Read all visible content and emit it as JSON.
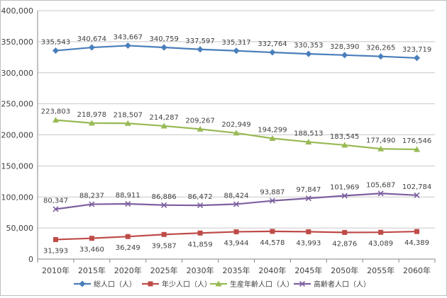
{
  "chart_data": {
    "type": "line",
    "categories": [
      "2010年",
      "2015年",
      "2020年",
      "2025年",
      "2030年",
      "2035年",
      "2040年",
      "2045年",
      "2050年",
      "2055年",
      "2060年"
    ],
    "ylim": [
      0,
      400000
    ],
    "y_ticks": [
      0,
      50000,
      100000,
      150000,
      200000,
      250000,
      300000,
      350000,
      400000
    ],
    "y_tick_labels": [
      "0",
      "50,000",
      "100,000",
      "150,000",
      "200,000",
      "250,000",
      "300,000",
      "350,000",
      "400,000"
    ],
    "grid": "horizontal",
    "legend_position": "bottom",
    "series": [
      {
        "name": "総人口（人）",
        "color": "#4a7ebb",
        "marker": "diamond",
        "label_position": "above",
        "values": [
          335543,
          340674,
          343667,
          340759,
          337597,
          335317,
          332764,
          330353,
          328390,
          326265,
          323719
        ],
        "labels": [
          "335,543",
          "340,674",
          "343,667",
          "340,759",
          "337,597",
          "335,317",
          "332,764",
          "330,353",
          "328,390",
          "326,265",
          "323,719"
        ]
      },
      {
        "name": "年少人口（人）",
        "color": "#be4b48",
        "marker": "square",
        "label_position": "below",
        "values": [
          31393,
          33460,
          36249,
          39587,
          41859,
          43944,
          44578,
          43993,
          42876,
          43089,
          44389
        ],
        "labels": [
          "31,393",
          "33,460",
          "36,249",
          "39,587",
          "41,859",
          "43,944",
          "44,578",
          "43,993",
          "42,876",
          "43,089",
          "44,389"
        ]
      },
      {
        "name": "生産年齢人口（人）",
        "color": "#98b954",
        "marker": "triangle",
        "label_position": "above",
        "values": [
          223803,
          218978,
          218507,
          214287,
          209267,
          202949,
          194299,
          188513,
          183545,
          177490,
          176546
        ],
        "labels": [
          "223,803",
          "218,978",
          "218,507",
          "214,287",
          "209,267",
          "202,949",
          "194,299",
          "188,513",
          "183,545",
          "177,490",
          "176,546"
        ]
      },
      {
        "name": "高齢者人口（人）",
        "color": "#7d60a0",
        "marker": "x",
        "label_position": "above",
        "values": [
          80347,
          88237,
          88911,
          86886,
          86472,
          88424,
          93887,
          97847,
          101969,
          105687,
          102784
        ],
        "labels": [
          "80,347",
          "88,237",
          "88,911",
          "86,886",
          "86,472",
          "88,424",
          "93,887",
          "97,847",
          "101,969",
          "105,687",
          "102,784"
        ]
      }
    ]
  }
}
